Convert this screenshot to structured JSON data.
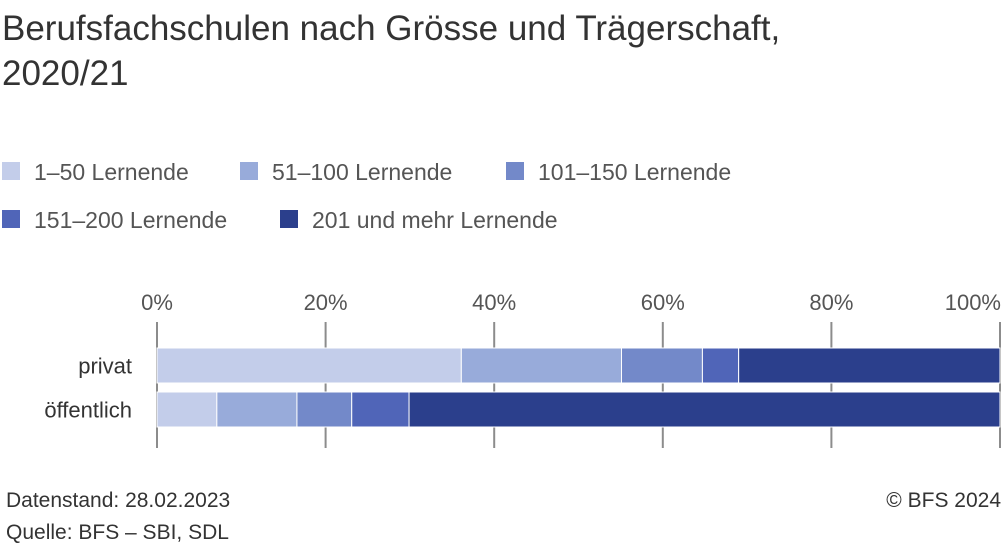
{
  "chart_data": {
    "type": "bar",
    "orientation": "horizontal",
    "stacked": "percent",
    "title_lines": [
      "Berufsfachschulen nach Grösse und Trägerschaft,",
      "2020/21"
    ],
    "categories": [
      "privat",
      "öffentlich"
    ],
    "series": [
      {
        "name": "1–50 Lernende",
        "color": "#c3cdea",
        "values": [
          36.1,
          7.1
        ]
      },
      {
        "name": "51–100 Lernende",
        "color": "#98abda",
        "values": [
          19.0,
          9.5
        ]
      },
      {
        "name": "101–150 Lernende",
        "color": "#7389c9",
        "values": [
          9.6,
          6.5
        ]
      },
      {
        "name": "151–200 Lernende",
        "color": "#5065b8",
        "values": [
          4.3,
          6.8
        ]
      },
      {
        "name": "201 und mehr Lernende",
        "color": "#2b3f8c",
        "values": [
          31.0,
          70.1
        ]
      }
    ],
    "x_ticks": [
      "0%",
      "20%",
      "40%",
      "60%",
      "80%",
      "100%"
    ],
    "xlim": [
      0,
      100
    ],
    "axis_position": "top",
    "grid": true,
    "legend_position": "top-left"
  },
  "footer": {
    "data_status": "Datenstand: 28.02.2023",
    "source": "Quelle: BFS – SBI, SDL",
    "copyright": "© BFS 2024"
  }
}
